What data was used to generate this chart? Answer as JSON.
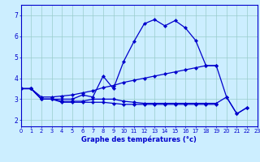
{
  "title": "Graphe des températures (°c)",
  "background_color": "#cceeff",
  "grid_color": "#99cccc",
  "line_color": "#0000cc",
  "x_ticks": [
    0,
    1,
    2,
    3,
    4,
    5,
    6,
    7,
    8,
    9,
    10,
    11,
    12,
    13,
    14,
    15,
    16,
    17,
    18,
    19,
    20,
    21,
    22,
    23
  ],
  "y_ticks": [
    2,
    3,
    4,
    5,
    6,
    7
  ],
  "ylim": [
    1.7,
    7.5
  ],
  "xlim": [
    0,
    23
  ],
  "series": [
    {
      "x": [
        0,
        1,
        2,
        3,
        4,
        5,
        6,
        7,
        8,
        9,
        10,
        11,
        12,
        13,
        14,
        15,
        16,
        17,
        18,
        19,
        20,
        21,
        22
      ],
      "y": [
        3.5,
        3.5,
        3.0,
        3.0,
        3.0,
        3.0,
        3.2,
        3.1,
        4.1,
        3.5,
        4.8,
        5.75,
        6.6,
        6.8,
        6.5,
        6.75,
        6.4,
        5.8,
        4.6,
        4.6,
        3.1,
        2.3,
        2.6
      ]
    },
    {
      "x": [
        0,
        1,
        2,
        3,
        4,
        5,
        6,
        7,
        8,
        9,
        10,
        11,
        12,
        13,
        14,
        15,
        16,
        17,
        18,
        19
      ],
      "y": [
        3.5,
        3.5,
        3.1,
        3.1,
        3.15,
        3.2,
        3.3,
        3.4,
        3.55,
        3.65,
        3.8,
        3.9,
        4.0,
        4.1,
        4.2,
        4.3,
        4.4,
        4.5,
        4.6,
        4.6
      ]
    },
    {
      "x": [
        0,
        1,
        2,
        3,
        4,
        5,
        6,
        7,
        8,
        9,
        10,
        11,
        12,
        13,
        14,
        15,
        16,
        17,
        18,
        19,
        20,
        21,
        22
      ],
      "y": [
        3.5,
        3.5,
        3.0,
        3.0,
        2.9,
        2.9,
        2.9,
        3.0,
        3.0,
        3.0,
        2.9,
        2.85,
        2.8,
        2.8,
        2.8,
        2.8,
        2.8,
        2.8,
        2.8,
        2.8,
        3.1,
        2.3,
        2.6
      ]
    },
    {
      "x": [
        0,
        1,
        2,
        3,
        4,
        5,
        6,
        7,
        8,
        9,
        10,
        11,
        12,
        13,
        14,
        15,
        16,
        17,
        18,
        19
      ],
      "y": [
        3.5,
        3.5,
        3.0,
        3.0,
        2.85,
        2.85,
        2.85,
        2.85,
        2.85,
        2.8,
        2.75,
        2.75,
        2.75,
        2.75,
        2.75,
        2.75,
        2.75,
        2.75,
        2.75,
        2.75
      ]
    }
  ]
}
